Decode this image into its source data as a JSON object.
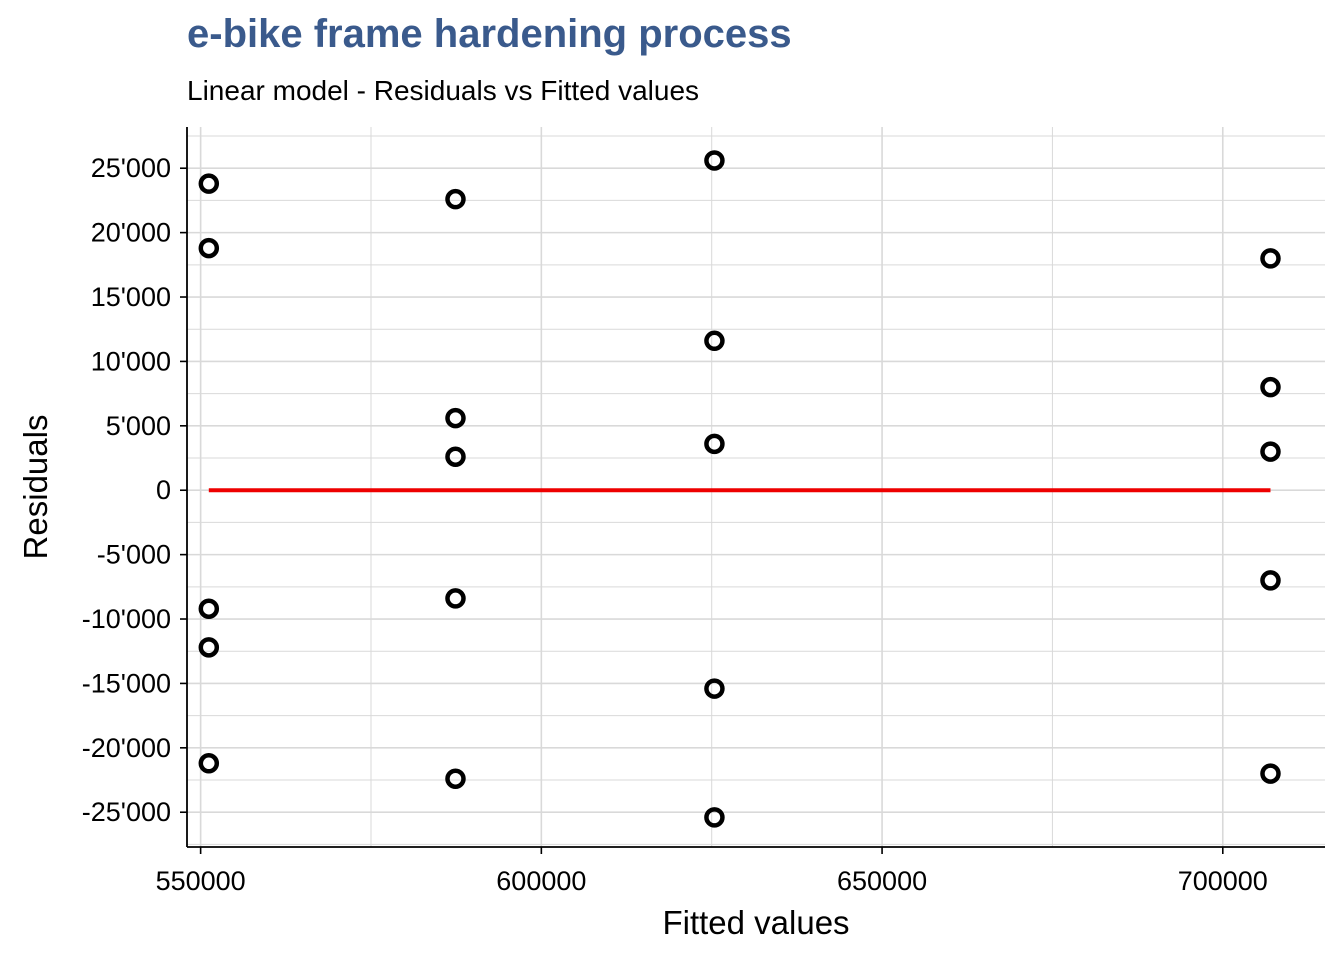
{
  "chart_data": {
    "type": "scatter",
    "title": "e-bike frame hardening process",
    "subtitle": "Linear model - Residuals vs Fitted values",
    "xlabel": "Fitted values",
    "ylabel": "Residuals",
    "xlim": [
      548000,
      715000
    ],
    "ylim": [
      -27700,
      28200
    ],
    "x_ticks": [
      550000,
      600000,
      650000,
      700000
    ],
    "x_tick_labels": [
      "550000",
      "600000",
      "650000",
      "700000"
    ],
    "y_ticks": [
      25000,
      20000,
      15000,
      10000,
      5000,
      0,
      -5000,
      -10000,
      -15000,
      -20000,
      -25000
    ],
    "y_tick_labels": [
      "25'000",
      "20'000",
      "15'000",
      "10'000",
      "5'000",
      "0",
      "-5'000",
      "-10'000",
      "-15'000",
      "-20'000",
      "-25'000"
    ],
    "grid": true,
    "points": [
      {
        "x": 551200,
        "y": 23800
      },
      {
        "x": 551200,
        "y": 18800
      },
      {
        "x": 551200,
        "y": -9200
      },
      {
        "x": 551200,
        "y": -12200
      },
      {
        "x": 551200,
        "y": -21200
      },
      {
        "x": 587400,
        "y": 22600
      },
      {
        "x": 587400,
        "y": 5600
      },
      {
        "x": 587400,
        "y": 2600
      },
      {
        "x": 587400,
        "y": -8400
      },
      {
        "x": 587400,
        "y": -22400
      },
      {
        "x": 625400,
        "y": 25600
      },
      {
        "x": 625400,
        "y": 11600
      },
      {
        "x": 625400,
        "y": 3600
      },
      {
        "x": 625400,
        "y": -15400
      },
      {
        "x": 625400,
        "y": -25400
      },
      {
        "x": 707000,
        "y": 18000
      },
      {
        "x": 707000,
        "y": 8000
      },
      {
        "x": 707000,
        "y": 3000
      },
      {
        "x": 707000,
        "y": -7000
      },
      {
        "x": 707000,
        "y": -22000
      }
    ],
    "reference_line": {
      "y": 0,
      "x_from": 551200,
      "x_to": 707000,
      "color": "#ee0000"
    },
    "colors": {
      "title": "#3a5a8c",
      "points": "#000000",
      "grid": "#d9d9d9"
    }
  }
}
